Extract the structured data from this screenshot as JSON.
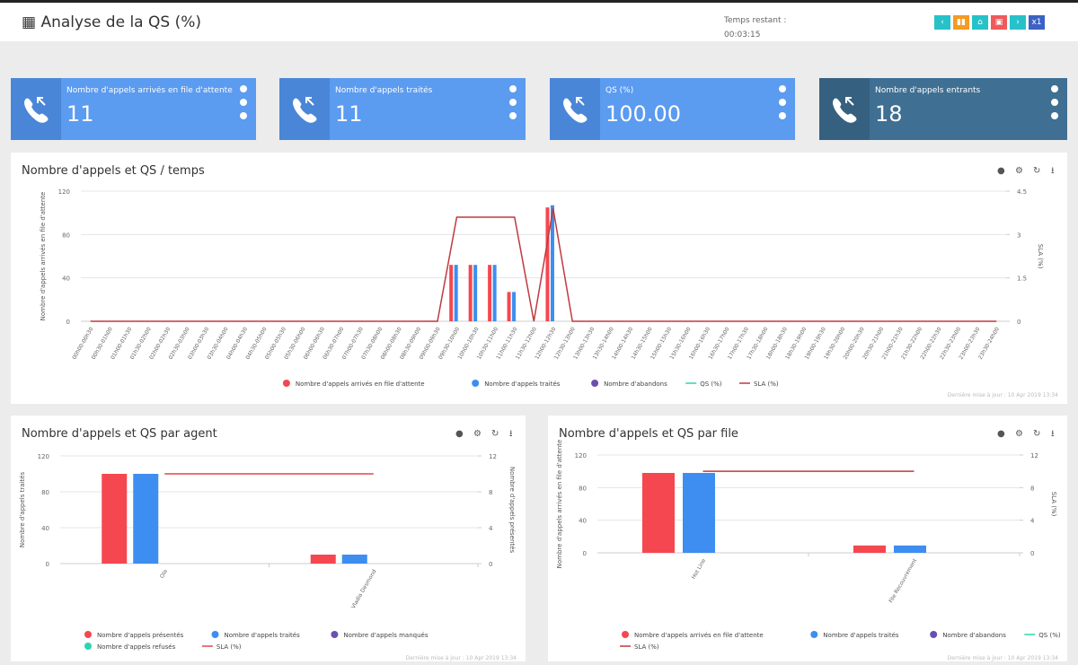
{
  "header": {
    "title": "Analyse de la QS (%)",
    "timer_label": "Temps restant :",
    "timer": "00:03:15",
    "speed": "x1"
  },
  "kpis": [
    {
      "label": "Nombre d'appels arrivés en file d'attente",
      "value": "11"
    },
    {
      "label": "Nombre d'appels traités",
      "value": "11"
    },
    {
      "label": "QS (%)",
      "value": "100.00"
    },
    {
      "label": "Nombre d'appels entrants",
      "value": "18"
    }
  ],
  "chart_data": [
    {
      "type": "combo",
      "title": "Nombre d'appels et QS / temps",
      "y_label": "Nombre d'appels arrivés en file d'attente",
      "y2_label": "SLA (%)",
      "footer": "Dernière mise à jour : 10 Apr 2019 13:34",
      "categories": [
        "00h00-00h30",
        "00h30-01h00",
        "01h00-01h30",
        "01h30-02h00",
        "02h00-02h30",
        "02h30-03h00",
        "03h00-03h30",
        "03h30-04h00",
        "04h00-04h30",
        "04h30-05h00",
        "05h00-05h30",
        "05h30-06h00",
        "06h00-06h30",
        "06h30-07h00",
        "07h00-07h30",
        "07h30-08h00",
        "08h00-08h30",
        "08h30-09h00",
        "09h00-09h30",
        "09h30-10h00",
        "10h00-10h30",
        "10h30-11h00",
        "11h00-11h30",
        "11h30-12h00",
        "12h00-12h30",
        "12h30-13h00",
        "13h00-13h30",
        "13h30-14h00",
        "14h00-14h30",
        "14h30-15h00",
        "15h00-15h30",
        "15h30-16h00",
        "16h00-16h30",
        "16h30-17h00",
        "17h00-17h30",
        "17h30-18h00",
        "18h00-18h30",
        "18h30-19h00",
        "19h00-19h30",
        "19h30-20h00",
        "20h00-20h30",
        "20h30-21h00",
        "21h00-21h30",
        "21h30-22h00",
        "22h00-22h30",
        "22h30-23h00",
        "23h00-23h30",
        "23h30-24h00"
      ],
      "ylim": [
        0,
        120
      ],
      "yticks": [
        0,
        40,
        80,
        120
      ],
      "y2lim": [
        0,
        4.5
      ],
      "y2ticks": [
        0,
        1.5,
        3,
        4.5
      ],
      "grid": true,
      "series": [
        {
          "name": "Nombre d'appels arrivés en file d'attente",
          "type": "bar",
          "color": "#f5474f",
          "values": [
            0,
            0,
            0,
            0,
            0,
            0,
            0,
            0,
            0,
            0,
            0,
            0,
            0,
            0,
            0,
            0,
            0,
            0,
            0,
            52,
            52,
            52,
            27,
            0,
            105,
            0,
            0,
            0,
            0,
            0,
            0,
            0,
            0,
            0,
            0,
            0,
            0,
            0,
            0,
            0,
            0,
            0,
            0,
            0,
            0,
            0,
            0,
            0
          ]
        },
        {
          "name": "Nombre d'appels traités",
          "type": "bar",
          "color": "#3d8ef0",
          "values": [
            0,
            0,
            0,
            0,
            0,
            0,
            0,
            0,
            0,
            0,
            0,
            0,
            0,
            0,
            0,
            0,
            0,
            0,
            0,
            52,
            52,
            52,
            27,
            0,
            107,
            0,
            0,
            0,
            0,
            0,
            0,
            0,
            0,
            0,
            0,
            0,
            0,
            0,
            0,
            0,
            0,
            0,
            0,
            0,
            0,
            0,
            0,
            0
          ]
        },
        {
          "name": "Nombre d'abandons",
          "type": "bar",
          "color": "#6a4fb0",
          "values": [
            0,
            0,
            0,
            0,
            0,
            0,
            0,
            0,
            0,
            0,
            0,
            0,
            0,
            0,
            0,
            0,
            0,
            0,
            0,
            0,
            0,
            0,
            0,
            0,
            0,
            0,
            0,
            0,
            0,
            0,
            0,
            0,
            0,
            0,
            0,
            0,
            0,
            0,
            0,
            0,
            0,
            0,
            0,
            0,
            0,
            0,
            0,
            0
          ]
        },
        {
          "name": "QS (%)",
          "type": "line",
          "axis": "y2",
          "color": "#2fd3b0",
          "values": [
            null,
            null,
            null,
            null,
            null,
            null,
            null,
            null,
            null,
            null,
            null,
            null,
            null,
            null,
            null,
            null,
            null,
            null,
            null,
            null,
            null,
            null,
            null,
            null,
            null,
            null,
            null,
            null,
            null,
            null,
            null,
            null,
            null,
            null,
            null,
            null,
            null,
            null,
            null,
            null,
            null,
            null,
            null,
            null,
            null,
            null,
            null,
            null
          ]
        },
        {
          "name": "SLA (%)",
          "type": "line",
          "axis": "y2",
          "color": "#c0393f",
          "values": [
            0,
            0,
            0,
            0,
            0,
            0,
            0,
            0,
            0,
            0,
            0,
            0,
            0,
            0,
            0,
            0,
            0,
            0,
            0,
            3.6,
            3.6,
            3.6,
            3.6,
            0,
            3.9,
            0,
            0,
            0,
            0,
            0,
            0,
            0,
            0,
            0,
            0,
            0,
            0,
            0,
            0,
            0,
            0,
            0,
            0,
            0,
            0,
            0,
            0,
            0
          ]
        }
      ]
    },
    {
      "type": "combo",
      "title": "Nombre d'appels et QS par agent",
      "y_label": "Nombre d'appels traités",
      "y2_label": "Nombre d'appels présentés",
      "footer": "Dernière mise à jour : 10 Apr 2019 13:34",
      "categories": [
        "Ola",
        "Vladia Desmond"
      ],
      "ylim": [
        0,
        120
      ],
      "yticks": [
        0,
        40,
        80,
        120
      ],
      "y2lim": [
        0,
        12
      ],
      "y2ticks": [
        0,
        4,
        8,
        12
      ],
      "grid": true,
      "series": [
        {
          "name": "Nombre d'appels présentés",
          "type": "bar",
          "color": "#f5474f",
          "values": [
            100,
            10
          ]
        },
        {
          "name": "Nombre d'appels traités",
          "type": "bar",
          "color": "#3d8ef0",
          "values": [
            100,
            10
          ]
        },
        {
          "name": "Nombre d'appels manqués",
          "type": "bar",
          "color": "#6a4fb0",
          "values": [
            0,
            0
          ]
        },
        {
          "name": "Nombre d'appels refusés",
          "type": "bar",
          "color": "#2fd3b0",
          "values": [
            0,
            0
          ]
        },
        {
          "name": "SLA (%)",
          "type": "line",
          "axis": "y2",
          "color": "#e0474f",
          "values": [
            10,
            10
          ]
        }
      ]
    },
    {
      "type": "combo",
      "title": "Nombre d'appels et QS par file",
      "y_label": "Nombre d'appels arrivés en file d'attente",
      "y2_label": "SLA (%)",
      "footer": "Dernière mise à jour : 10 Apr 2019 13:34",
      "categories": [
        "Hot Line",
        "File Recouvrement"
      ],
      "ylim": [
        0,
        120
      ],
      "yticks": [
        0,
        40,
        80,
        120
      ],
      "y2lim": [
        0,
        12
      ],
      "y2ticks": [
        0,
        4,
        8,
        12
      ],
      "grid": true,
      "series": [
        {
          "name": "Nombre d'appels arrivés en file d'attente",
          "type": "bar",
          "color": "#f5474f",
          "values": [
            98,
            9
          ]
        },
        {
          "name": "Nombre d'appels traités",
          "type": "bar",
          "color": "#3d8ef0",
          "values": [
            98,
            9
          ]
        },
        {
          "name": "Nombre d'abandons",
          "type": "bar",
          "color": "#6a4fb0",
          "values": [
            0,
            0
          ]
        },
        {
          "name": "QS (%)",
          "type": "line",
          "axis": "y2",
          "color": "#2fd3b0",
          "values": [
            null,
            null
          ]
        },
        {
          "name": "SLA (%)",
          "type": "line",
          "axis": "y2",
          "color": "#c0393f",
          "values": [
            10,
            10
          ]
        }
      ]
    }
  ]
}
